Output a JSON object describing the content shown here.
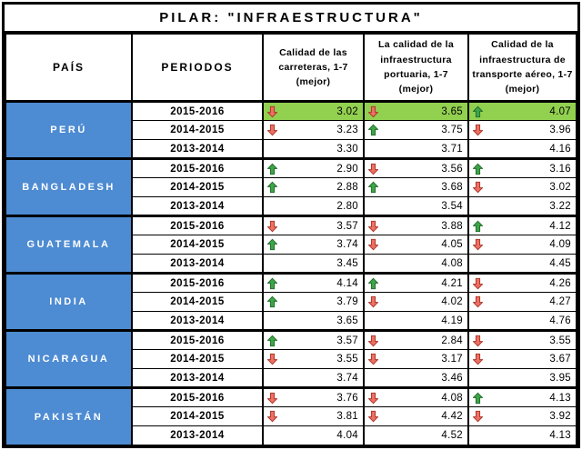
{
  "title": "PILAR: \"INFRAESTRUCTURA\"",
  "colors": {
    "highlight_green": "#92D050",
    "country_blue": "#4D8BD2",
    "up_arrow_fill": "#3FA548",
    "up_arrow_stroke": "#1F6B2B",
    "down_arrow_fill": "#EC7063",
    "down_arrow_stroke": "#A93226",
    "border_black": "#000000"
  },
  "chart_data": {
    "type": "table",
    "title": "PILAR: \"INFRAESTRUCTURA\"",
    "columns": [
      "PAÍS",
      "PERIODOS",
      "Calidad de las\ncarreteras, 1-7\n(mejor)",
      "La calidad de la\ninfraestructura\nportuaria, 1-7\n(mejor)",
      "Calidad de la\ninfraestructura de\ntransporte aéreo, 1-7\n(mejor)"
    ],
    "value_scale": "1-7 (mejor)",
    "groups": [
      {
        "country": "PERÚ",
        "rows": [
          {
            "period": "2015-2016",
            "highlight": true,
            "cells": [
              {
                "trend": "down",
                "value": 3.02
              },
              {
                "trend": "down",
                "value": 3.65
              },
              {
                "trend": "up",
                "value": 4.07
              }
            ]
          },
          {
            "period": "2014-2015",
            "highlight": false,
            "cells": [
              {
                "trend": "down",
                "value": 3.23
              },
              {
                "trend": "up",
                "value": 3.75
              },
              {
                "trend": "down",
                "value": 3.96
              }
            ]
          },
          {
            "period": "2013-2014",
            "highlight": false,
            "cells": [
              {
                "trend": null,
                "value": 3.3
              },
              {
                "trend": null,
                "value": 3.71
              },
              {
                "trend": null,
                "value": 4.16
              }
            ]
          }
        ]
      },
      {
        "country": "BANGLADESH",
        "rows": [
          {
            "period": "2015-2016",
            "highlight": false,
            "cells": [
              {
                "trend": "up",
                "value": 2.9
              },
              {
                "trend": "down",
                "value": 3.56
              },
              {
                "trend": "up",
                "value": 3.16
              }
            ]
          },
          {
            "period": "2014-2015",
            "highlight": false,
            "cells": [
              {
                "trend": "up",
                "value": 2.88
              },
              {
                "trend": "up",
                "value": 3.68
              },
              {
                "trend": "down",
                "value": 3.02
              }
            ]
          },
          {
            "period": "2013-2014",
            "highlight": false,
            "cells": [
              {
                "trend": null,
                "value": 2.8
              },
              {
                "trend": null,
                "value": 3.54
              },
              {
                "trend": null,
                "value": 3.22
              }
            ]
          }
        ]
      },
      {
        "country": "GUATEMALA",
        "rows": [
          {
            "period": "2015-2016",
            "highlight": false,
            "cells": [
              {
                "trend": "down",
                "value": 3.57
              },
              {
                "trend": "down",
                "value": 3.88
              },
              {
                "trend": "up",
                "value": 4.12
              }
            ]
          },
          {
            "period": "2014-2015",
            "highlight": false,
            "cells": [
              {
                "trend": "up",
                "value": 3.74
              },
              {
                "trend": "down",
                "value": 4.05
              },
              {
                "trend": "down",
                "value": 4.09
              }
            ]
          },
          {
            "period": "2013-2014",
            "highlight": false,
            "cells": [
              {
                "trend": null,
                "value": 3.45
              },
              {
                "trend": null,
                "value": 4.08
              },
              {
                "trend": null,
                "value": 4.45
              }
            ]
          }
        ]
      },
      {
        "country": "INDIA",
        "rows": [
          {
            "period": "2015-2016",
            "highlight": false,
            "cells": [
              {
                "trend": "up",
                "value": 4.14
              },
              {
                "trend": "up",
                "value": 4.21
              },
              {
                "trend": "down",
                "value": 4.26
              }
            ]
          },
          {
            "period": "2014-2015",
            "highlight": false,
            "cells": [
              {
                "trend": "up",
                "value": 3.79
              },
              {
                "trend": "down",
                "value": 4.02
              },
              {
                "trend": "down",
                "value": 4.27
              }
            ]
          },
          {
            "period": "2013-2014",
            "highlight": false,
            "cells": [
              {
                "trend": null,
                "value": 3.65
              },
              {
                "trend": null,
                "value": 4.19
              },
              {
                "trend": null,
                "value": 4.76
              }
            ]
          }
        ]
      },
      {
        "country": "NICARAGUA",
        "rows": [
          {
            "period": "2015-2016",
            "highlight": false,
            "cells": [
              {
                "trend": "up",
                "value": 3.57
              },
              {
                "trend": "down",
                "value": 2.84
              },
              {
                "trend": "down",
                "value": 3.55
              }
            ]
          },
          {
            "period": "2014-2015",
            "highlight": false,
            "cells": [
              {
                "trend": "down",
                "value": 3.55
              },
              {
                "trend": "down",
                "value": 3.17
              },
              {
                "trend": "down",
                "value": 3.67
              }
            ]
          },
          {
            "period": "2013-2014",
            "highlight": false,
            "cells": [
              {
                "trend": null,
                "value": 3.74
              },
              {
                "trend": null,
                "value": 3.46
              },
              {
                "trend": null,
                "value": 3.95
              }
            ]
          }
        ]
      },
      {
        "country": "PAKISTÁN",
        "rows": [
          {
            "period": "2015-2016",
            "highlight": false,
            "cells": [
              {
                "trend": "down",
                "value": 3.76
              },
              {
                "trend": "down",
                "value": 4.08
              },
              {
                "trend": "up",
                "value": 4.13
              }
            ]
          },
          {
            "period": "2014-2015",
            "highlight": false,
            "cells": [
              {
                "trend": "down",
                "value": 3.81
              },
              {
                "trend": "down",
                "value": 4.42
              },
              {
                "trend": "down",
                "value": 3.92
              }
            ]
          },
          {
            "period": "2013-2014",
            "highlight": false,
            "cells": [
              {
                "trend": null,
                "value": 4.04
              },
              {
                "trend": null,
                "value": 4.52
              },
              {
                "trend": null,
                "value": 4.13
              }
            ]
          }
        ]
      }
    ]
  }
}
